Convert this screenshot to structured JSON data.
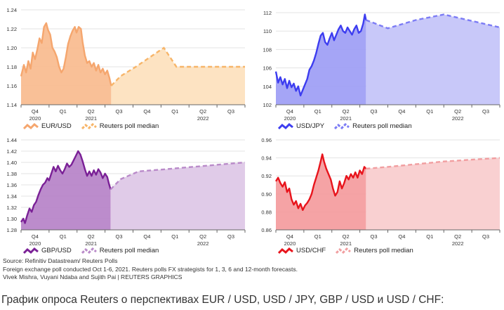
{
  "chart_data": [
    {
      "id": "eurusd",
      "type": "area",
      "ylim": [
        1.14,
        1.24
      ],
      "yticks": [
        "1.24",
        "1.22",
        "1.20",
        "1.18",
        "1.16",
        "1.14"
      ],
      "quarter_labels": [
        "Q4",
        "Q1",
        "Q2",
        "Q3",
        "Q4",
        "Q1",
        "Q2",
        "Q3"
      ],
      "year_labels": [
        {
          "label": "2020",
          "quarter": 0
        },
        {
          "label": "2021",
          "quarter": 2
        },
        {
          "label": "2022",
          "quarter": 6
        }
      ],
      "history_color": "#f5a66e",
      "history_fill": "#f8b98c",
      "forecast_color": "#f7b569",
      "forecast_fill": "#fde3c2",
      "legend": [
        "EUR/USD",
        "Reuters poll median"
      ],
      "history": [
        [
          0.0,
          1.17
        ],
        [
          0.1,
          1.182
        ],
        [
          0.18,
          1.174
        ],
        [
          0.26,
          1.186
        ],
        [
          0.34,
          1.178
        ],
        [
          0.42,
          1.195
        ],
        [
          0.5,
          1.188
        ],
        [
          0.58,
          1.198
        ],
        [
          0.66,
          1.21
        ],
        [
          0.74,
          1.205
        ],
        [
          0.82,
          1.222
        ],
        [
          0.9,
          1.226
        ],
        [
          0.96,
          1.219
        ],
        [
          1.04,
          1.214
        ],
        [
          1.12,
          1.2
        ],
        [
          1.2,
          1.196
        ],
        [
          1.28,
          1.19
        ],
        [
          1.36,
          1.18
        ],
        [
          1.44,
          1.174
        ],
        [
          1.52,
          1.178
        ],
        [
          1.6,
          1.19
        ],
        [
          1.68,
          1.204
        ],
        [
          1.76,
          1.212
        ],
        [
          1.84,
          1.218
        ],
        [
          1.92,
          1.222
        ],
        [
          1.98,
          1.216
        ],
        [
          2.06,
          1.222
        ],
        [
          2.14,
          1.22
        ],
        [
          2.2,
          1.206
        ],
        [
          2.28,
          1.192
        ],
        [
          2.36,
          1.184
        ],
        [
          2.44,
          1.186
        ],
        [
          2.52,
          1.18
        ],
        [
          2.6,
          1.184
        ],
        [
          2.68,
          1.176
        ],
        [
          2.76,
          1.182
        ],
        [
          2.84,
          1.174
        ],
        [
          2.92,
          1.178
        ],
        [
          3.0,
          1.172
        ],
        [
          3.08,
          1.176
        ],
        [
          3.16,
          1.168
        ],
        [
          3.22,
          1.16
        ]
      ],
      "forecast": [
        [
          3.22,
          1.16
        ],
        [
          3.55,
          1.17
        ],
        [
          4.1,
          1.18
        ],
        [
          5.1,
          1.2
        ],
        [
          5.55,
          1.18
        ],
        [
          8.0,
          1.18
        ]
      ]
    },
    {
      "id": "usdjpy",
      "type": "area",
      "ylim": [
        102,
        112
      ],
      "yticks": [
        "112",
        "110",
        "108",
        "106",
        "104",
        "102"
      ],
      "quarter_labels": [
        "Q4",
        "Q1",
        "Q2",
        "Q3",
        "Q4",
        "Q1",
        "Q2",
        "Q3"
      ],
      "year_labels": [
        {
          "label": "2020",
          "quarter": 0
        },
        {
          "label": "2021",
          "quarter": 2
        },
        {
          "label": "2022",
          "quarter": 6
        }
      ],
      "history_color": "#3d3df0",
      "history_fill": "#9b9bf5",
      "forecast_color": "#7c7cf5",
      "forecast_fill": "#c8c8f9",
      "legend": [
        "USD/JPY",
        "Reuters poll median"
      ],
      "history": [
        [
          0.0,
          105.6
        ],
        [
          0.08,
          104.4
        ],
        [
          0.16,
          105.0
        ],
        [
          0.24,
          104.2
        ],
        [
          0.32,
          104.8
        ],
        [
          0.4,
          103.8
        ],
        [
          0.48,
          104.6
        ],
        [
          0.56,
          103.9
        ],
        [
          0.64,
          104.3
        ],
        [
          0.72,
          103.5
        ],
        [
          0.8,
          104.0
        ],
        [
          0.88,
          103.0
        ],
        [
          0.96,
          103.6
        ],
        [
          1.04,
          104.2
        ],
        [
          1.12,
          104.8
        ],
        [
          1.2,
          105.8
        ],
        [
          1.28,
          106.2
        ],
        [
          1.36,
          106.8
        ],
        [
          1.44,
          107.6
        ],
        [
          1.52,
          108.6
        ],
        [
          1.6,
          109.5
        ],
        [
          1.68,
          109.8
        ],
        [
          1.76,
          108.8
        ],
        [
          1.84,
          108.5
        ],
        [
          1.92,
          109.2
        ],
        [
          2.0,
          109.8
        ],
        [
          2.08,
          109.0
        ],
        [
          2.16,
          109.6
        ],
        [
          2.24,
          110.2
        ],
        [
          2.32,
          110.6
        ],
        [
          2.4,
          110.0
        ],
        [
          2.48,
          109.8
        ],
        [
          2.56,
          110.4
        ],
        [
          2.64,
          110.0
        ],
        [
          2.72,
          109.6
        ],
        [
          2.8,
          110.2
        ],
        [
          2.88,
          110.6
        ],
        [
          2.96,
          109.8
        ],
        [
          3.04,
          110.0
        ],
        [
          3.12,
          110.8
        ],
        [
          3.18,
          111.8
        ],
        [
          3.22,
          111.2
        ]
      ],
      "forecast": [
        [
          3.22,
          111.2
        ],
        [
          4.0,
          110.3
        ],
        [
          5.0,
          111.2
        ],
        [
          6.0,
          111.8
        ],
        [
          8.0,
          110.4
        ]
      ]
    },
    {
      "id": "gbpusd",
      "type": "area",
      "ylim": [
        1.28,
        1.44
      ],
      "yticks": [
        "1.44",
        "1.42",
        "1.40",
        "1.38",
        "1.36",
        "1.34",
        "1.32",
        "1.30",
        "1.28"
      ],
      "quarter_labels": [
        "Q4",
        "Q1",
        "Q2",
        "Q3",
        "Q4",
        "Q1",
        "Q2",
        "Q3"
      ],
      "year_labels": [
        {
          "label": "2020",
          "quarter": 0
        },
        {
          "label": "2021",
          "quarter": 2
        },
        {
          "label": "2022",
          "quarter": 6
        }
      ],
      "history_color": "#7a2096",
      "history_fill": "#b57fc6",
      "forecast_color": "#b98ac9",
      "forecast_fill": "#e0cbe8",
      "legend": [
        "GBP/USD",
        "Reuters poll median"
      ],
      "history": [
        [
          0.0,
          1.294
        ],
        [
          0.08,
          1.3
        ],
        [
          0.14,
          1.292
        ],
        [
          0.22,
          1.306
        ],
        [
          0.3,
          1.318
        ],
        [
          0.38,
          1.312
        ],
        [
          0.46,
          1.324
        ],
        [
          0.54,
          1.33
        ],
        [
          0.62,
          1.342
        ],
        [
          0.7,
          1.352
        ],
        [
          0.78,
          1.36
        ],
        [
          0.86,
          1.364
        ],
        [
          0.94,
          1.372
        ],
        [
          1.0,
          1.368
        ],
        [
          1.08,
          1.38
        ],
        [
          1.16,
          1.392
        ],
        [
          1.24,
          1.384
        ],
        [
          1.32,
          1.394
        ],
        [
          1.4,
          1.386
        ],
        [
          1.48,
          1.38
        ],
        [
          1.56,
          1.388
        ],
        [
          1.64,
          1.398
        ],
        [
          1.72,
          1.392
        ],
        [
          1.8,
          1.396
        ],
        [
          1.88,
          1.404
        ],
        [
          1.96,
          1.412
        ],
        [
          2.04,
          1.42
        ],
        [
          2.12,
          1.414
        ],
        [
          2.2,
          1.402
        ],
        [
          2.28,
          1.388
        ],
        [
          2.36,
          1.376
        ],
        [
          2.44,
          1.384
        ],
        [
          2.52,
          1.376
        ],
        [
          2.6,
          1.386
        ],
        [
          2.68,
          1.378
        ],
        [
          2.76,
          1.388
        ],
        [
          2.84,
          1.382
        ],
        [
          2.92,
          1.372
        ],
        [
          3.0,
          1.38
        ],
        [
          3.08,
          1.374
        ],
        [
          3.14,
          1.362
        ],
        [
          3.2,
          1.352
        ]
      ],
      "forecast": [
        [
          3.2,
          1.352
        ],
        [
          3.55,
          1.37
        ],
        [
          4.2,
          1.384
        ],
        [
          5.2,
          1.388
        ],
        [
          8.0,
          1.4
        ]
      ]
    },
    {
      "id": "usdchf",
      "type": "area",
      "ylim": [
        0.86,
        0.96
      ],
      "yticks": [
        "0.96",
        "0.94",
        "0.92",
        "0.90",
        "0.88",
        "0.86"
      ],
      "quarter_labels": [
        "Q4",
        "Q1",
        "Q2",
        "Q3",
        "Q4",
        "Q1",
        "Q2",
        "Q3"
      ],
      "year_labels": [
        {
          "label": "2020",
          "quarter": 0
        },
        {
          "label": "2021",
          "quarter": 2
        },
        {
          "label": "2022",
          "quarter": 6
        }
      ],
      "history_color": "#e8141c",
      "history_fill": "#f4999b",
      "forecast_color": "#f19ea0",
      "forecast_fill": "#f9d0d1",
      "legend": [
        "USD/CHF",
        "Reuters poll median"
      ],
      "history": [
        [
          0.0,
          0.914
        ],
        [
          0.08,
          0.918
        ],
        [
          0.16,
          0.912
        ],
        [
          0.24,
          0.908
        ],
        [
          0.32,
          0.913
        ],
        [
          0.4,
          0.902
        ],
        [
          0.48,
          0.906
        ],
        [
          0.56,
          0.894
        ],
        [
          0.64,
          0.888
        ],
        [
          0.72,
          0.892
        ],
        [
          0.8,
          0.884
        ],
        [
          0.88,
          0.889
        ],
        [
          0.96,
          0.882
        ],
        [
          1.04,
          0.887
        ],
        [
          1.12,
          0.89
        ],
        [
          1.2,
          0.894
        ],
        [
          1.28,
          0.9
        ],
        [
          1.36,
          0.91
        ],
        [
          1.44,
          0.918
        ],
        [
          1.52,
          0.926
        ],
        [
          1.6,
          0.936
        ],
        [
          1.66,
          0.944
        ],
        [
          1.72,
          0.936
        ],
        [
          1.8,
          0.928
        ],
        [
          1.88,
          0.922
        ],
        [
          1.96,
          0.916
        ],
        [
          2.04,
          0.906
        ],
        [
          2.12,
          0.898
        ],
        [
          2.2,
          0.902
        ],
        [
          2.28,
          0.914
        ],
        [
          2.36,
          0.906
        ],
        [
          2.44,
          0.912
        ],
        [
          2.52,
          0.92
        ],
        [
          2.6,
          0.916
        ],
        [
          2.68,
          0.922
        ],
        [
          2.76,
          0.918
        ],
        [
          2.84,
          0.924
        ],
        [
          2.92,
          0.918
        ],
        [
          3.0,
          0.926
        ],
        [
          3.08,
          0.922
        ],
        [
          3.16,
          0.93
        ],
        [
          3.22,
          0.928
        ]
      ],
      "forecast": [
        [
          3.22,
          0.928
        ],
        [
          4.0,
          0.93
        ],
        [
          5.0,
          0.933
        ],
        [
          6.0,
          0.936
        ],
        [
          8.0,
          0.94
        ]
      ]
    }
  ],
  "notes": {
    "source": "Source: Refinitiv Datastream/ Reuters Polls",
    "poll": "Foreign exchange poll conducted Oct 1-6, 2021. Reuters polls FX strategists for 1, 3, 6 and 12-month forecasts.",
    "credits": "Vivek Mishra, Vuyani Ndaba and Sujith Pai | REUTERS GRAPHICS"
  },
  "caption": "График опроса Reuters о перспективах EUR / USD, USD / JPY, GBP / USD и USD / CHF:"
}
